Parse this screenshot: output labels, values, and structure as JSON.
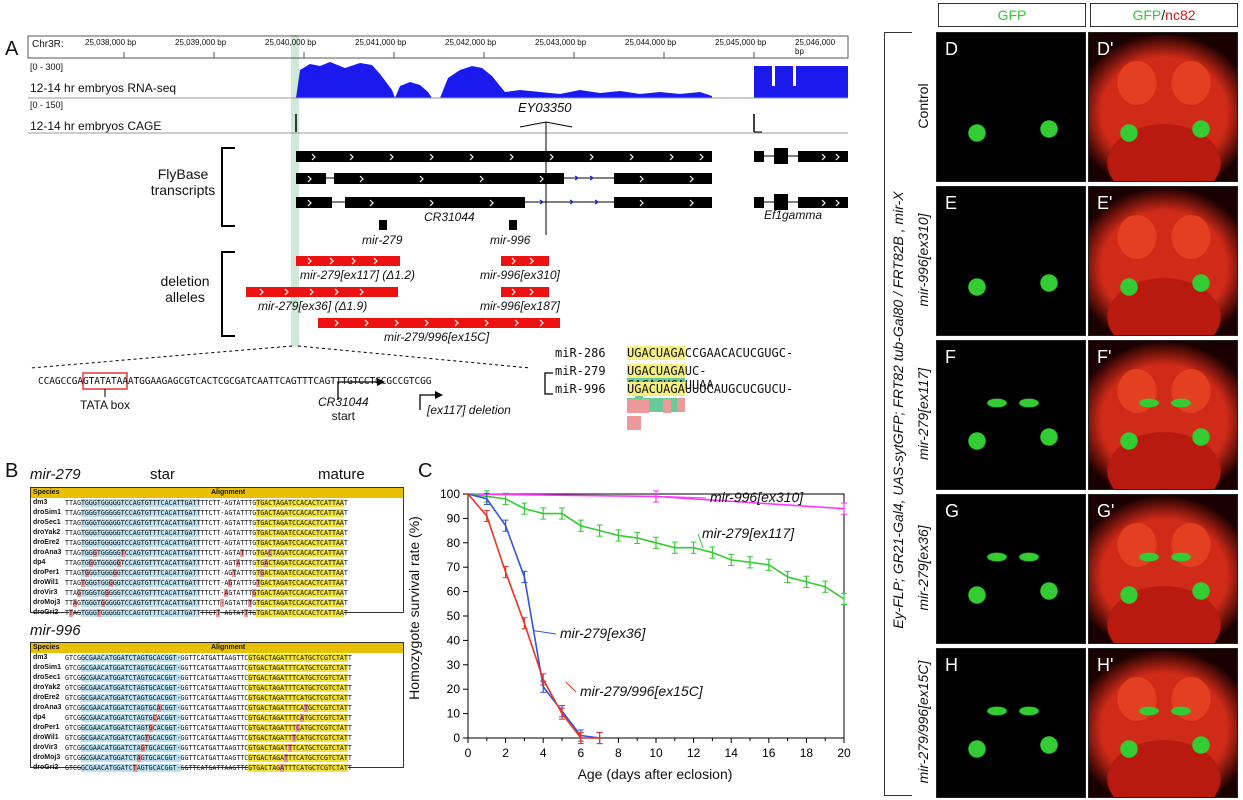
{
  "panels": {
    "A": "A",
    "B": "B",
    "C": "C",
    "D": "D",
    "Dp": "D'",
    "E": "E",
    "Ep": "E'",
    "F": "F",
    "Fp": "F'",
    "G": "G",
    "Gp": "G'",
    "H": "H",
    "Hp": "H'"
  },
  "browser": {
    "chrom": "Chr3R:",
    "ruler": [
      "25,038,000 bp",
      "25,039,000 bp",
      "25,040,000 bp",
      "25,041,000 bp",
      "25,042,000 bp",
      "25,043,000 bp",
      "25,044,000 bp",
      "25,045,000 bp",
      "25,046,000 bp"
    ],
    "rnaseq_range": "[0 - 300]",
    "rnaseq_label": "12-14 hr embryos RNA-seq",
    "cage_range": "[0 - 150]",
    "cage_label": "12-14 hr embryos CAGE",
    "insertion": "EY03350",
    "flybase_label_1": "FlyBase",
    "flybase_label_2": "transcripts",
    "gene1": "CR31044",
    "gene2": "Ef1gamma",
    "mir279": "mir-279",
    "mir996": "mir-996",
    "deletion_label_1": "deletion",
    "deletion_label_2": "alleles",
    "del1": "mir-279[ex117] (Δ1.2)",
    "del2": "mir-279[ex36] (Δ1.9)",
    "del3": "mir-996[ex310]",
    "del4": "mir-996[ex187]",
    "del5": "mir-279/996[ex15C]",
    "promoter_seq": "CCAGCCGAGTATATAAATGGAAGAGCGTCACTCGCGATCAATTCAGTTTCAGTTTGTCCTGCGCCGTCGG",
    "tata_label": "TATA box",
    "start_label_1": "CR31044",
    "start_label_2": "start",
    "ex117_label": "[ex117] deletion"
  },
  "mirna_alignment": [
    {
      "name": "miR-286",
      "seq": "UGACUAGACCGAACACUCGUGC-"
    },
    {
      "name": "miR-279",
      "seq": "UGACUAGAUC-CACACUCAUUAA"
    },
    {
      "name": "miR-996",
      "seq": "UGACUAGAUUUCAUGCUCGUCU-"
    }
  ],
  "panelB": {
    "mir279_title": "mir-279",
    "star": "star",
    "mature": "mature",
    "mir996_title": "mir-996",
    "col_species": "Species",
    "col_alignment": "Alignment",
    "species": [
      "dm3",
      "droSim1",
      "droSec1",
      "droYak2",
      "droEre2",
      "droAna3",
      "dp4",
      "droPer1",
      "droWil1",
      "droVir3",
      "droMoj3",
      "droGri2"
    ],
    "seq279": "TTAGTGGGTGGGGGTCCAGTGTTTCACATTGATTTTCTT-AGTATTTGTGACTAGATCCACACTCATTAAT",
    "seq996": "GTCGGCGAACATGGATCTAGTGCACGGT-GGTTCATGATTAAGTTCGTGACTAGATTTCATGCTCGTCTATT"
  },
  "chart_data": {
    "type": "line",
    "xlabel": "Age (days after eclosion)",
    "ylabel": "Homozygote survival rate (%)",
    "xlim": [
      0,
      20
    ],
    "ylim": [
      0,
      100
    ],
    "xticks": [
      0,
      2,
      4,
      6,
      8,
      10,
      12,
      14,
      16,
      18,
      20
    ],
    "yticks": [
      0,
      10,
      20,
      30,
      40,
      50,
      60,
      70,
      80,
      90,
      100
    ],
    "series": [
      {
        "name": "mir-996[ex310]",
        "color": "#ff33ff",
        "x": [
          0,
          10,
          20
        ],
        "y": [
          100,
          99,
          94
        ]
      },
      {
        "name": "mir-279[ex117]",
        "color": "#33cc33",
        "x": [
          0,
          1,
          2,
          3,
          4,
          5,
          6,
          7,
          8,
          9,
          10,
          11,
          12,
          13,
          14,
          15,
          16,
          17,
          18,
          19,
          20
        ],
        "y": [
          100,
          99,
          98,
          94,
          92,
          92,
          87,
          85,
          83,
          82,
          80,
          78,
          78,
          76,
          73,
          72,
          71,
          66,
          64,
          62,
          57
        ]
      },
      {
        "name": "mir-279[ex36]",
        "color": "#3355dd",
        "x": [
          0,
          1,
          2,
          3,
          4,
          5,
          6,
          7
        ],
        "y": [
          100,
          98,
          87,
          66,
          21,
          11,
          1,
          0
        ]
      },
      {
        "name": "mir-279/996[ex15C]",
        "color": "#ee3322",
        "x": [
          0,
          1,
          2,
          3,
          4,
          5,
          6,
          7
        ],
        "y": [
          100,
          91,
          68,
          47,
          24,
          10,
          0,
          0
        ]
      }
    ]
  },
  "right": {
    "hdr_gfp": "GFP",
    "hdr_merge_gfp": "GFP",
    "hdr_merge_sep": "/",
    "hdr_merge_nc82": "nc82",
    "genotype": "Ey-FLP; GR21-Gal4, UAS-sytGFP; FRT82 tub-Gal80 / FRT82B , mir-X",
    "rows": [
      "Control",
      "mir-996[ex310]",
      "mir-279[ex117]",
      "mir-279[ex36]",
      "mir-279/996[ex15C]"
    ]
  },
  "colors": {
    "rnaseq": "#1a1aee",
    "deletion": "#ee1111",
    "gfp": "#33cc33",
    "nc82": "#ee1111",
    "tata_box": "#ee3333",
    "highlight_yellow": "#f5ef80",
    "highlight_green": "#66cc99",
    "highlight_red": "#ee9999",
    "promoter_band": "#cfe8d8"
  }
}
